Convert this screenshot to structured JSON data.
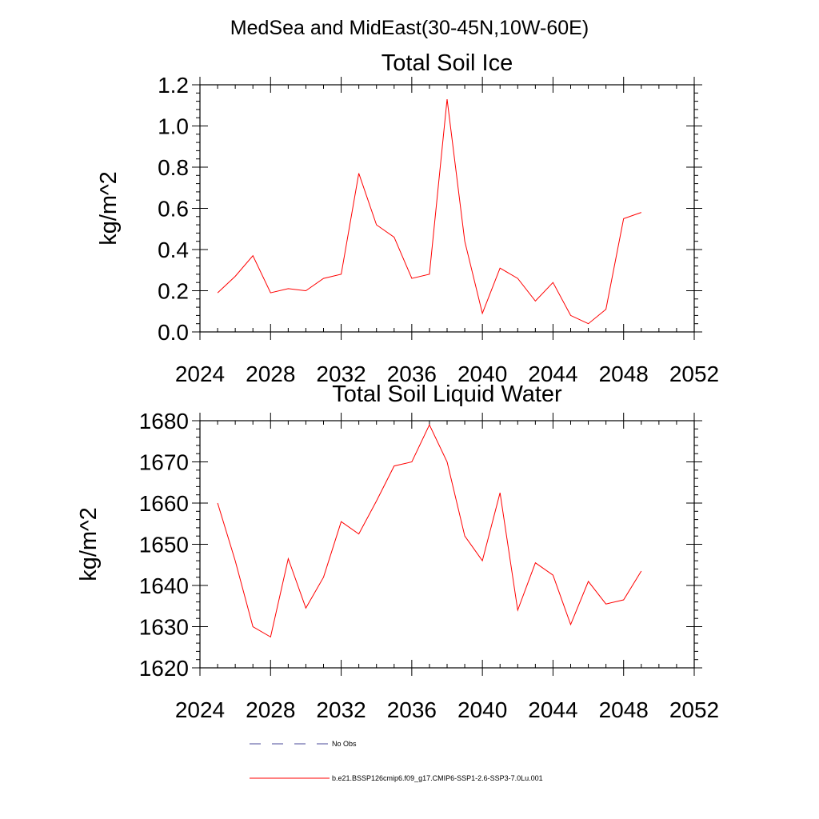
{
  "figure": {
    "suptitle": "MedSea and MidEast(30-45N,10W-60E)"
  },
  "legend": {
    "entries": [
      {
        "label": "No Obs",
        "color": "#4a4a9a",
        "style": "dashed"
      },
      {
        "label": "b.e21.BSSP126cmip6.f09_g17.CMIP6-SSP1-2.6-SSP3-7.0Lu.001",
        "color": "#ff0000",
        "style": "solid"
      }
    ]
  },
  "chart_data": [
    {
      "type": "line",
      "title": "Total Soil Ice",
      "xlabel": "",
      "ylabel": "kg/m^2",
      "xlim": [
        2024,
        2052
      ],
      "ylim": [
        0.0,
        1.2
      ],
      "xticks": [
        2024,
        2028,
        2032,
        2036,
        2040,
        2044,
        2048,
        2052
      ],
      "yticks": [
        "0.0",
        "0.2",
        "0.4",
        "0.6",
        "0.8",
        "1.0",
        "1.2"
      ],
      "ytick_values": [
        0.0,
        0.2,
        0.4,
        0.6,
        0.8,
        1.0,
        1.2
      ],
      "grid": false,
      "series": [
        {
          "color": "#ff0000",
          "x": [
            2025,
            2026,
            2027,
            2028,
            2029,
            2030,
            2031,
            2032,
            2033,
            2034,
            2035,
            2036,
            2037,
            2038,
            2039,
            2040,
            2041,
            2042,
            2043,
            2044,
            2045,
            2046,
            2047,
            2048,
            2049
          ],
          "y": [
            0.19,
            0.27,
            0.37,
            0.19,
            0.21,
            0.2,
            0.26,
            0.28,
            0.77,
            0.52,
            0.46,
            0.26,
            0.28,
            1.13,
            0.44,
            0.09,
            0.31,
            0.26,
            0.15,
            0.24,
            0.08,
            0.04,
            0.11,
            0.55,
            0.58
          ]
        }
      ]
    },
    {
      "type": "line",
      "title": "Total Soil Liquid Water",
      "xlabel": "",
      "ylabel": "kg/m^2",
      "xlim": [
        2024,
        2052
      ],
      "ylim": [
        1620,
        1680
      ],
      "xticks": [
        2024,
        2028,
        2032,
        2036,
        2040,
        2044,
        2048,
        2052
      ],
      "yticks": [
        "1620",
        "1630",
        "1640",
        "1650",
        "1660",
        "1670",
        "1680"
      ],
      "ytick_values": [
        1620,
        1630,
        1640,
        1650,
        1660,
        1670,
        1680
      ],
      "grid": false,
      "series": [
        {
          "color": "#ff0000",
          "x": [
            2025,
            2026,
            2027,
            2028,
            2029,
            2030,
            2031,
            2032,
            2033,
            2034,
            2035,
            2036,
            2037,
            2038,
            2039,
            2040,
            2041,
            2042,
            2043,
            2044,
            2045,
            2046,
            2047,
            2048,
            2049
          ],
          "y": [
            1660,
            1646,
            1630,
            1627.5,
            1646.5,
            1634.5,
            1642,
            1655.5,
            1652.5,
            1660.5,
            1669,
            1670,
            1679,
            1670,
            1652,
            1646,
            1662.5,
            1634,
            1645.5,
            1642.5,
            1630.5,
            1641,
            1635.5,
            1636.5,
            1643.5
          ]
        }
      ]
    }
  ]
}
